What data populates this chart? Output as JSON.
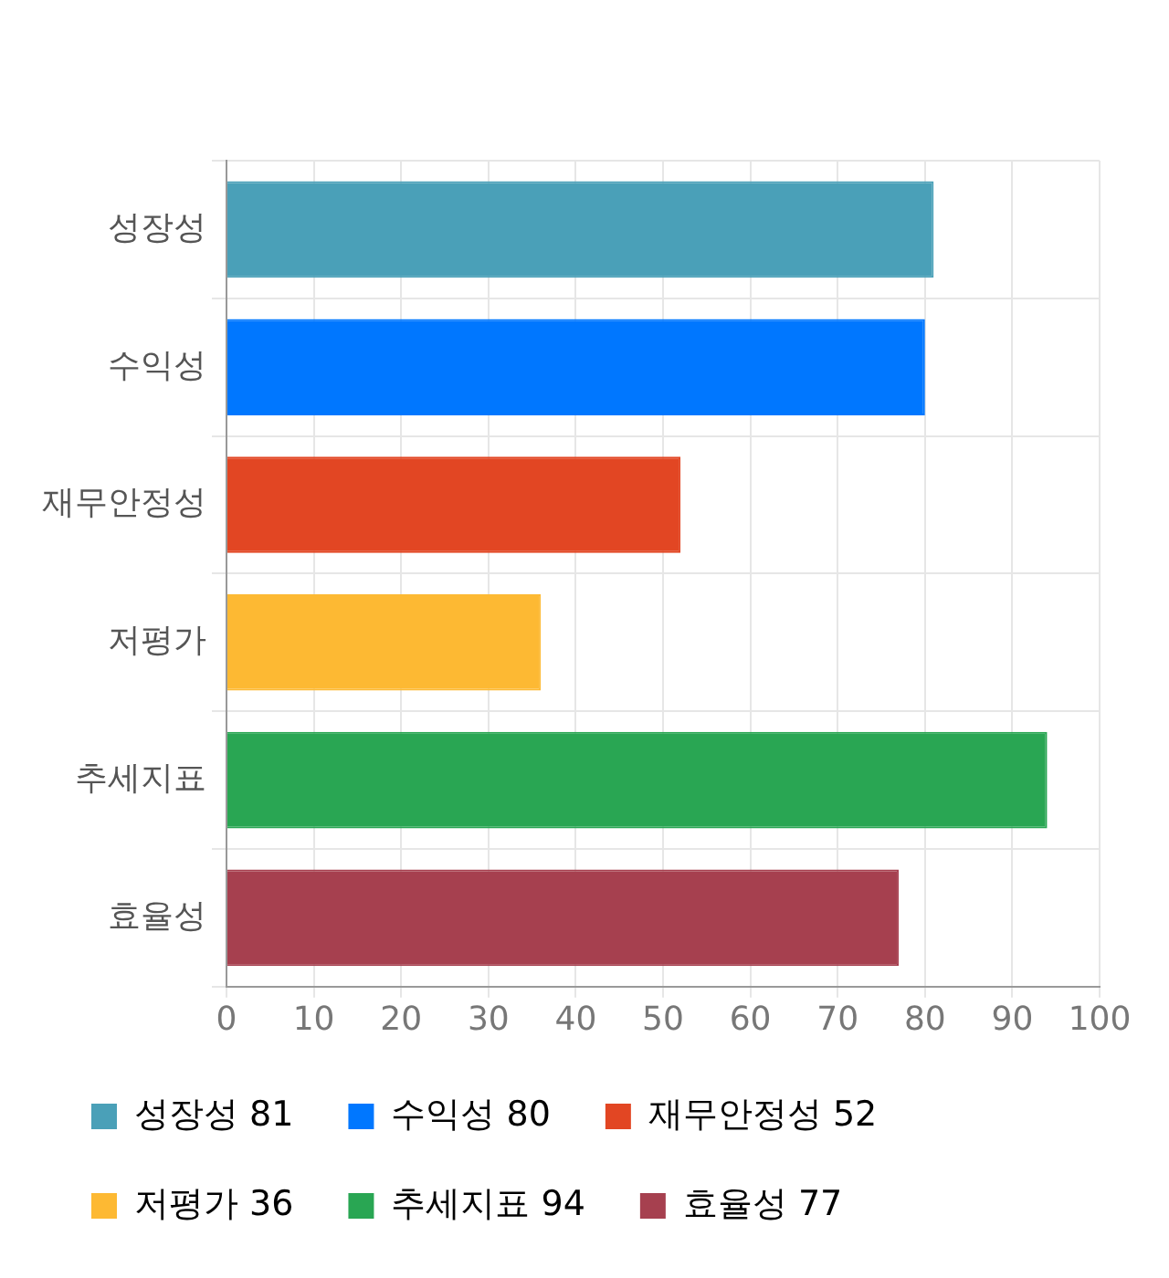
{
  "chart_data": {
    "type": "bar",
    "orientation": "horizontal",
    "stacked": true,
    "categories": [
      "성장성",
      "수익성",
      "재무안정성",
      "저평가",
      "추세지표",
      "효율성"
    ],
    "series": [
      {
        "name": "성장성 81",
        "color": "#4aa0b8",
        "values": [
          81,
          null,
          null,
          null,
          null,
          null
        ]
      },
      {
        "name": "수익성 80",
        "color": "#0077ff",
        "values": [
          null,
          80,
          null,
          null,
          null,
          null
        ]
      },
      {
        "name": "재무안정성 52",
        "color": "#e24623",
        "values": [
          null,
          null,
          52,
          null,
          null,
          null
        ]
      },
      {
        "name": "저평가 36",
        "color": "#fdb933",
        "values": [
          null,
          null,
          null,
          36,
          null,
          null
        ]
      },
      {
        "name": "추세지표 94",
        "color": "#29a653",
        "values": [
          null,
          null,
          null,
          null,
          94,
          null
        ]
      },
      {
        "name": "효율성 77",
        "color": "#a6404f",
        "values": [
          null,
          null,
          null,
          null,
          null,
          77
        ]
      }
    ],
    "xlim": [
      0,
      100
    ],
    "xticks": [
      0,
      10,
      20,
      30,
      40,
      50,
      60,
      70,
      80,
      90,
      100
    ],
    "grid": true,
    "legend": "bottom"
  }
}
